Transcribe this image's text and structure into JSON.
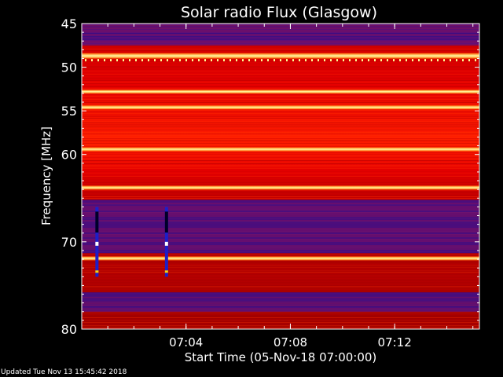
{
  "chart_data": {
    "type": "heatmap",
    "title": "Solar radio Flux (Glasgow)",
    "xlabel": "Start Time (05-Nov-18 07:00:00)",
    "ylabel": "Frequency [MHz]",
    "x_unit": "time",
    "x_range": [
      "07:00:00",
      "07:15:15"
    ],
    "x_ticks": [
      "07:04",
      "07:08",
      "07:12"
    ],
    "y_range": [
      45,
      80
    ],
    "y_reversed": true,
    "y_ticks": [
      45,
      50,
      55,
      60,
      70,
      80
    ],
    "colormap": [
      "#00006e",
      "#3a14c8",
      "#8c1050",
      "#b40000",
      "#e60000",
      "#ff3c00",
      "#ffb43c",
      "#ffffa0"
    ],
    "horizontal_bands": [
      {
        "mhz": 48.7,
        "intensity": "very-high"
      },
      {
        "mhz": 52.8,
        "intensity": "high"
      },
      {
        "mhz": 54.6,
        "intensity": "high"
      },
      {
        "mhz": 59.4,
        "intensity": "high"
      },
      {
        "mhz": 63.8,
        "intensity": "high"
      },
      {
        "mhz": 71.9,
        "intensity": "high"
      }
    ],
    "low_intensity_regions": [
      {
        "from_mhz": 45,
        "to_mhz": 47.5
      },
      {
        "from_mhz": 65.2,
        "to_mhz": 71.3
      },
      {
        "from_mhz": 75.8,
        "to_mhz": 78
      }
    ],
    "vertical_spikes": [
      {
        "time": "07:00:35",
        "from_mhz": 66,
        "to_mhz": 74
      },
      {
        "time": "07:03:15",
        "from_mhz": 66,
        "to_mhz": 74
      }
    ]
  },
  "footer": {
    "updated": "Updated Tue Nov 13 15:45:42 2018"
  }
}
